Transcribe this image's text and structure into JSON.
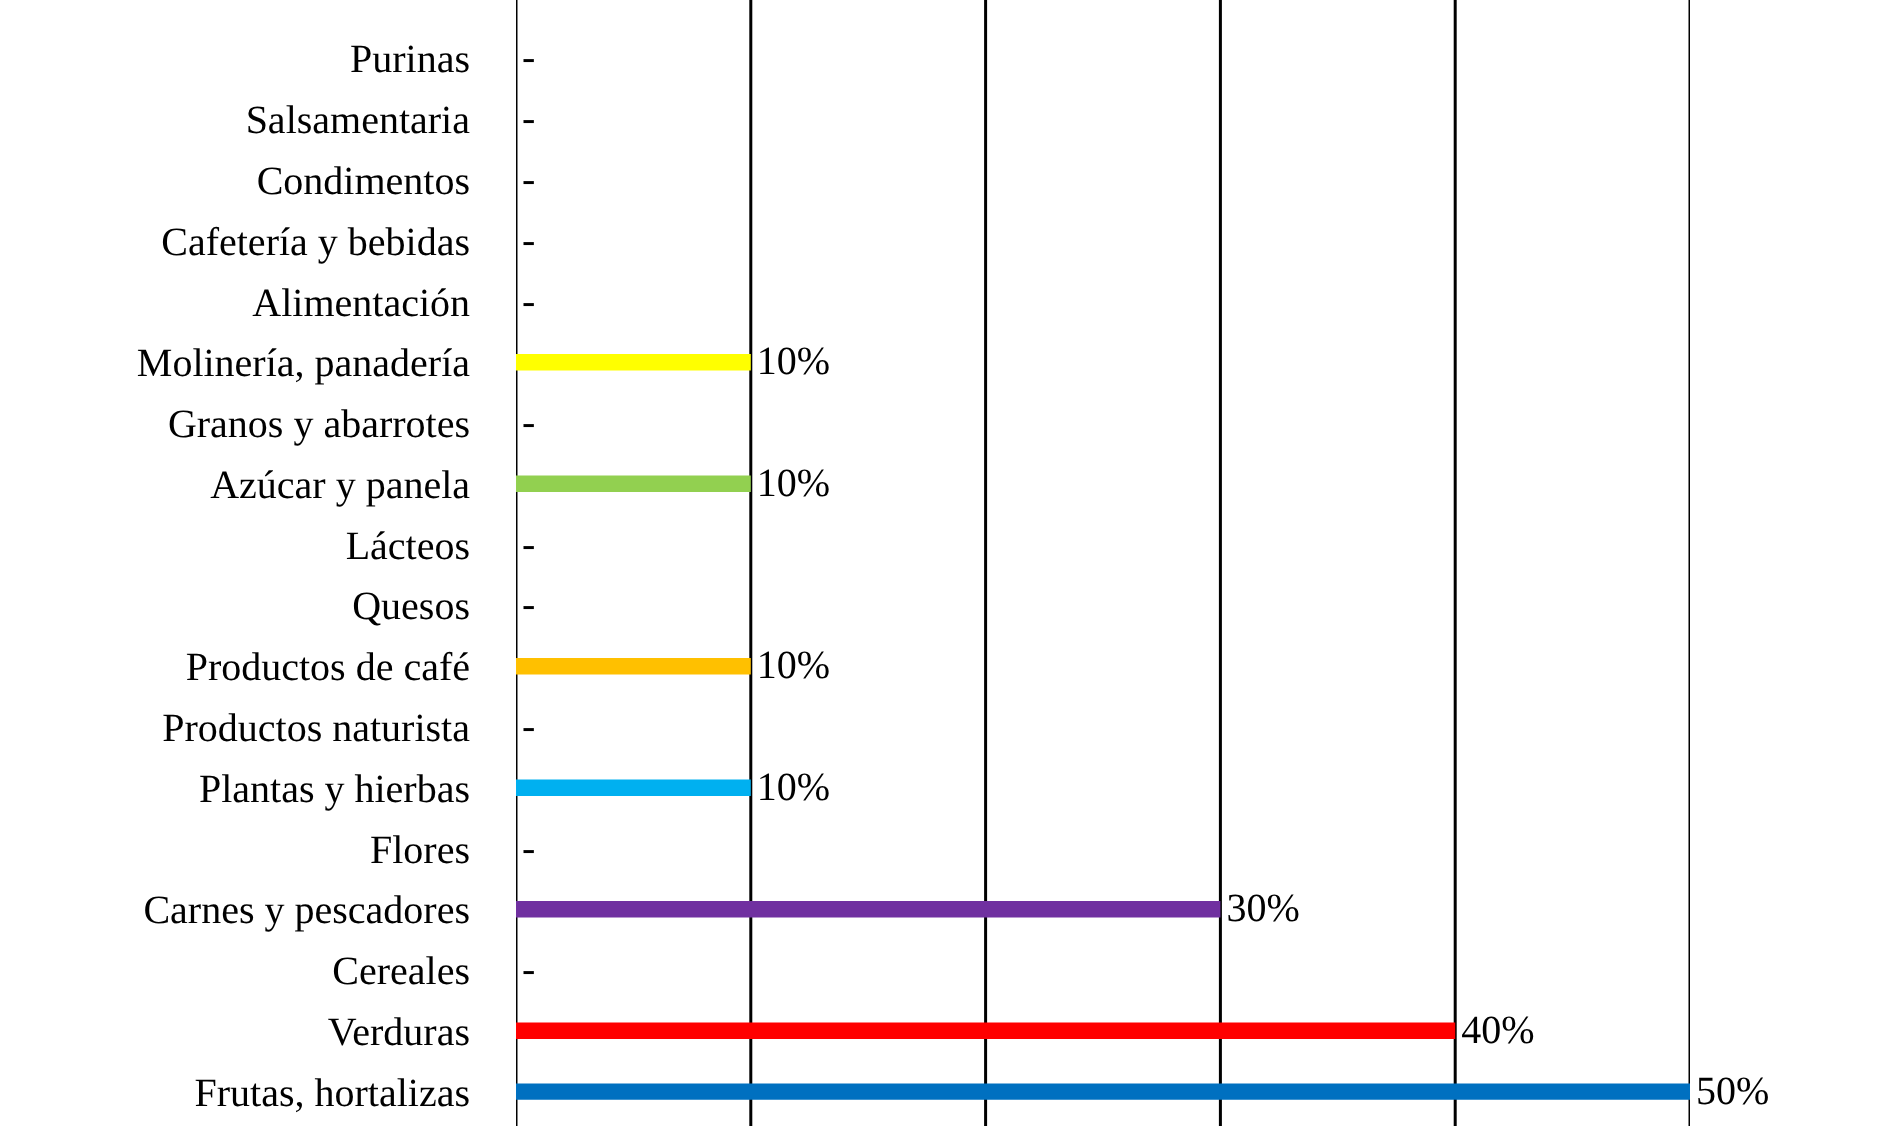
{
  "chart_data": {
    "type": "bar",
    "orientation": "horizontal",
    "categories": [
      "Purinas",
      "Salsamentaria",
      "Condimentos",
      "Cafetería y bebidas",
      "Alimentación",
      "Molinería, panadería",
      "Granos y abarrotes",
      "Azúcar y panela",
      "Lácteos",
      "Quesos",
      "Productos de café",
      "Productos naturista",
      "Plantas y hierbas",
      "Flores",
      "Carnes y pescadores",
      "Cereales",
      "Verduras",
      "Frutas, hortalizas"
    ],
    "values": [
      0,
      0,
      0,
      0,
      0,
      10,
      0,
      10,
      0,
      0,
      10,
      0,
      10,
      0,
      30,
      0,
      40,
      50
    ],
    "value_labels": [
      "-",
      "-",
      "-",
      "-",
      "-",
      "10%",
      "-",
      "10%",
      "-",
      "-",
      "10%",
      "-",
      "10%",
      "-",
      "30%",
      "-",
      "40%",
      "50%"
    ],
    "colors": [
      null,
      null,
      null,
      null,
      null,
      "#ffff00",
      null,
      "#92d050",
      null,
      null,
      "#ffc000",
      null,
      "#00b0f0",
      null,
      "#7030a0",
      null,
      "#ff0000",
      "#0070c0"
    ],
    "xlim": [
      0,
      50
    ],
    "xticks": [
      {
        "value": 0,
        "label": null
      },
      {
        "value": 10,
        "label": null
      },
      {
        "value": 20,
        "label": null
      },
      {
        "value": 30,
        "label": null
      },
      {
        "value": 40,
        "label": null
      },
      {
        "value": 50,
        "label": null
      }
    ],
    "grid": "x",
    "tick_labels": "y"
  }
}
